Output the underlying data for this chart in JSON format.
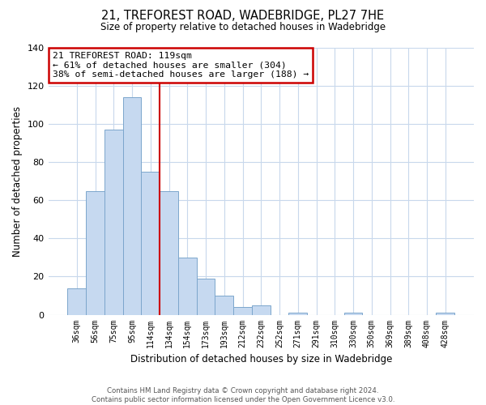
{
  "title": "21, TREFOREST ROAD, WADEBRIDGE, PL27 7HE",
  "subtitle": "Size of property relative to detached houses in Wadebridge",
  "xlabel": "Distribution of detached houses by size in Wadebridge",
  "ylabel": "Number of detached properties",
  "bar_labels": [
    "36sqm",
    "56sqm",
    "75sqm",
    "95sqm",
    "114sqm",
    "134sqm",
    "154sqm",
    "173sqm",
    "193sqm",
    "212sqm",
    "232sqm",
    "252sqm",
    "271sqm",
    "291sqm",
    "310sqm",
    "330sqm",
    "350sqm",
    "369sqm",
    "389sqm",
    "408sqm",
    "428sqm"
  ],
  "bar_values": [
    14,
    65,
    97,
    114,
    75,
    65,
    30,
    19,
    10,
    4,
    5,
    0,
    1,
    0,
    0,
    1,
    0,
    0,
    0,
    0,
    1
  ],
  "bar_color": "#c6d9f0",
  "bar_edge_color": "#7ca6cc",
  "vline_color": "#cc0000",
  "vline_x": 4.5,
  "ylim": [
    0,
    140
  ],
  "yticks": [
    0,
    20,
    40,
    60,
    80,
    100,
    120,
    140
  ],
  "annotation_title": "21 TREFOREST ROAD: 119sqm",
  "annotation_line1": "← 61% of detached houses are smaller (304)",
  "annotation_line2": "38% of semi-detached houses are larger (188) →",
  "annotation_box_color": "#ffffff",
  "annotation_box_edge_color": "#cc0000",
  "footer_line1": "Contains HM Land Registry data © Crown copyright and database right 2024.",
  "footer_line2": "Contains public sector information licensed under the Open Government Licence v3.0.",
  "background_color": "#ffffff",
  "grid_color": "#c8d8ec"
}
